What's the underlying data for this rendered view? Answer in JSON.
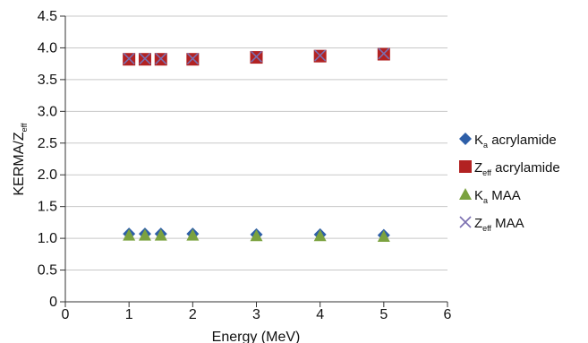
{
  "chart_data": {
    "type": "scatter",
    "x_label_main": "Energy (MeV)",
    "y_label_main": "KERMA/Z",
    "y_label_sub": "eff",
    "xlim": [
      0,
      6
    ],
    "ylim": [
      0,
      4.5
    ],
    "x_ticks": [
      "0",
      "1",
      "2",
      "3",
      "4",
      "5",
      "6"
    ],
    "y_ticks": [
      "0",
      "0.5",
      "1.0",
      "1.5",
      "2.0",
      "2.5",
      "3.0",
      "3.5",
      "4.0",
      "4.5"
    ],
    "grid": "horizontal",
    "legend_position": "right",
    "x": [
      1,
      1.25,
      1.5,
      2,
      3,
      4,
      5
    ],
    "series": [
      {
        "label_main": "K",
        "label_sub": "a",
        "label_rest": " acrylamide",
        "marker": "diamond",
        "color": "#2e5fa8",
        "values": [
          1.07,
          1.07,
          1.07,
          1.07,
          1.06,
          1.06,
          1.05
        ]
      },
      {
        "label_main": "Z",
        "label_sub": "eff",
        "label_rest": " acrylamide",
        "marker": "square",
        "color": "#b22222",
        "values": [
          3.82,
          3.82,
          3.82,
          3.82,
          3.85,
          3.87,
          3.9
        ]
      },
      {
        "label_main": "K",
        "label_sub": "a",
        "label_rest": " MAA",
        "marker": "triangle",
        "color": "#7ba23f",
        "values": [
          1.05,
          1.05,
          1.05,
          1.05,
          1.04,
          1.04,
          1.03
        ]
      },
      {
        "label_main": "Z",
        "label_sub": "eff",
        "label_rest": " MAA",
        "marker": "x",
        "color": "#7b6fb0",
        "values": [
          3.83,
          3.83,
          3.83,
          3.83,
          3.86,
          3.88,
          3.91
        ]
      }
    ]
  }
}
